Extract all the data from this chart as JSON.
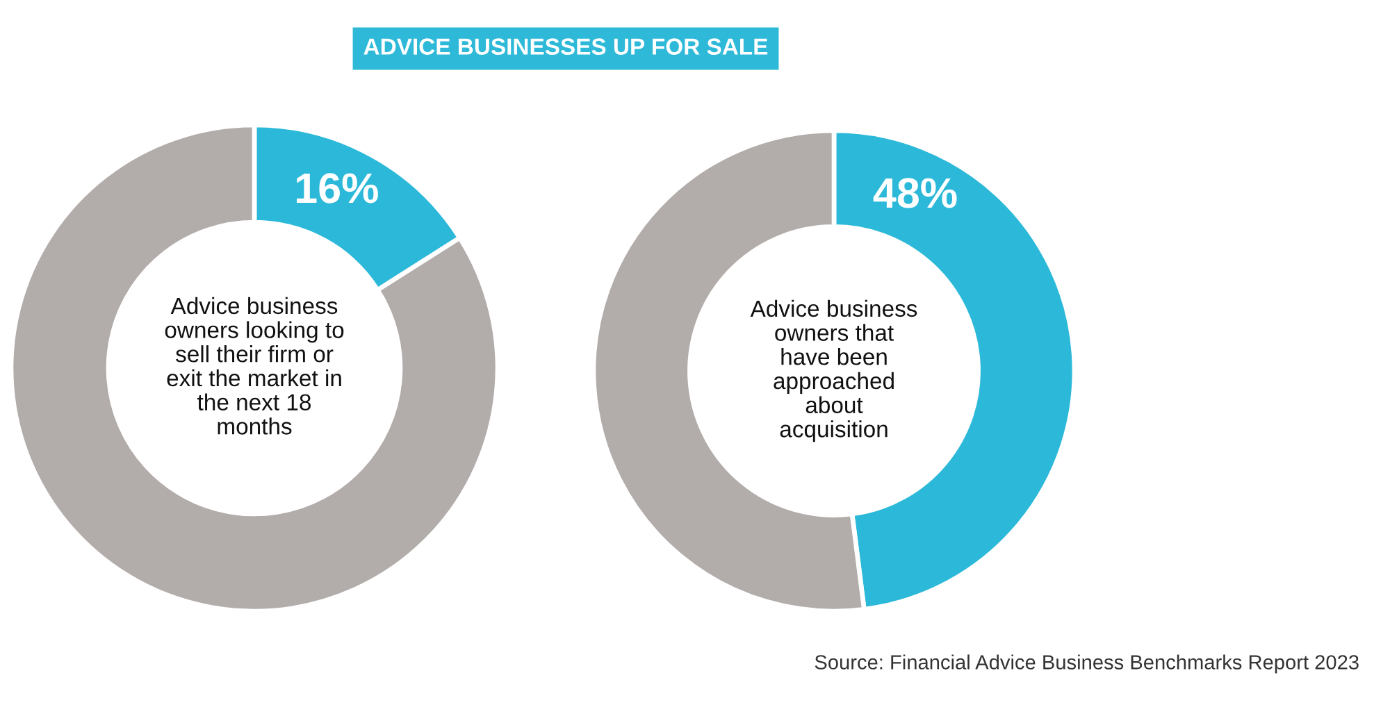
{
  "chart_data": [
    {
      "type": "donut",
      "title": "ADVICE BUSINESSES UP FOR SALE",
      "categories": [
        null,
        null
      ],
      "values": [
        16,
        84
      ],
      "colors": [
        "#2cb9d9",
        "#b2acaa"
      ],
      "value_labels": [
        "16%",
        null
      ],
      "annotations": [
        "Advice business\nowners looking to\nsell their firm or\nexit the market in\nthe next 18\nmonths"
      ]
    },
    {
      "type": "donut",
      "categories": [
        null,
        null
      ],
      "values": [
        48,
        52
      ],
      "colors": [
        "#2cb9d9",
        "#b2acaa"
      ],
      "value_labels": [
        "48%",
        null
      ],
      "annotations": [
        "Advice business\nowners that\nhave been\napproached\nabout\nacquisition",
        "Source: Financial Advice Business Benchmarks Report 2023"
      ]
    }
  ]
}
